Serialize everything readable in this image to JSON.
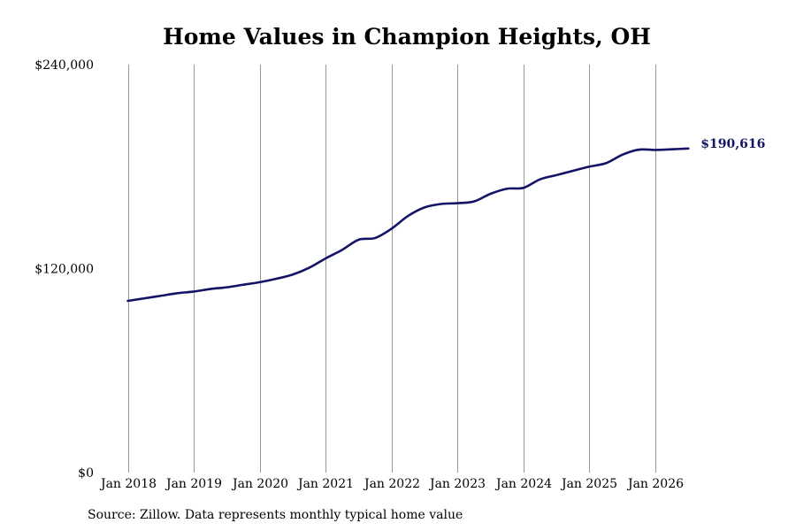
{
  "chart_data": {
    "type": "line",
    "title": "Home Values in Champion Heights, OH",
    "xlabel": "",
    "ylabel": "",
    "ylim": [
      0,
      240000
    ],
    "y_ticks": [
      {
        "value": 0,
        "label": "$0"
      },
      {
        "value": 120000,
        "label": "$120,000"
      },
      {
        "value": 240000,
        "label": "$240,000"
      }
    ],
    "x_ticks": [
      {
        "date": "2018-01",
        "label": "Jan 2018"
      },
      {
        "date": "2019-01",
        "label": "Jan 2019"
      },
      {
        "date": "2020-01",
        "label": "Jan 2020"
      },
      {
        "date": "2021-01",
        "label": "Jan 2021"
      },
      {
        "date": "2022-01",
        "label": "Jan 2022"
      },
      {
        "date": "2023-01",
        "label": "Jan 2023"
      },
      {
        "date": "2024-01",
        "label": "Jan 2024"
      },
      {
        "date": "2025-01",
        "label": "Jan 2025"
      },
      {
        "date": "2026-01",
        "label": "Jan 2026"
      }
    ],
    "grid": {
      "vertical": true,
      "horizontal": false
    },
    "line_color": "#141466",
    "grid_color": "#999999",
    "series": [
      {
        "x": [
          "2018-01",
          "2018-04",
          "2018-07",
          "2018-10",
          "2019-01",
          "2019-04",
          "2019-07",
          "2019-10",
          "2020-01",
          "2020-04",
          "2020-07",
          "2020-10",
          "2021-01",
          "2021-04",
          "2021-07",
          "2021-10",
          "2022-01",
          "2022-04",
          "2022-07",
          "2022-10",
          "2023-01",
          "2023-04",
          "2023-07",
          "2023-10",
          "2024-01",
          "2024-04",
          "2024-07",
          "2024-10",
          "2025-01",
          "2025-04",
          "2025-07",
          "2025-10",
          "2026-01",
          "2026-04",
          "2026-07"
        ],
        "y": [
          101000,
          102500,
          104000,
          105500,
          106500,
          108000,
          109000,
          110500,
          112000,
          114000,
          116500,
          120500,
          126000,
          131000,
          137000,
          138000,
          143500,
          151000,
          156000,
          158000,
          158500,
          159500,
          164000,
          167000,
          167500,
          172500,
          175000,
          177500,
          180000,
          182000,
          187000,
          190000,
          189800,
          190200,
          190616
        ]
      }
    ],
    "end_label": "$190,616"
  },
  "source_note": "Source: Zillow. Data represents monthly typical home value"
}
